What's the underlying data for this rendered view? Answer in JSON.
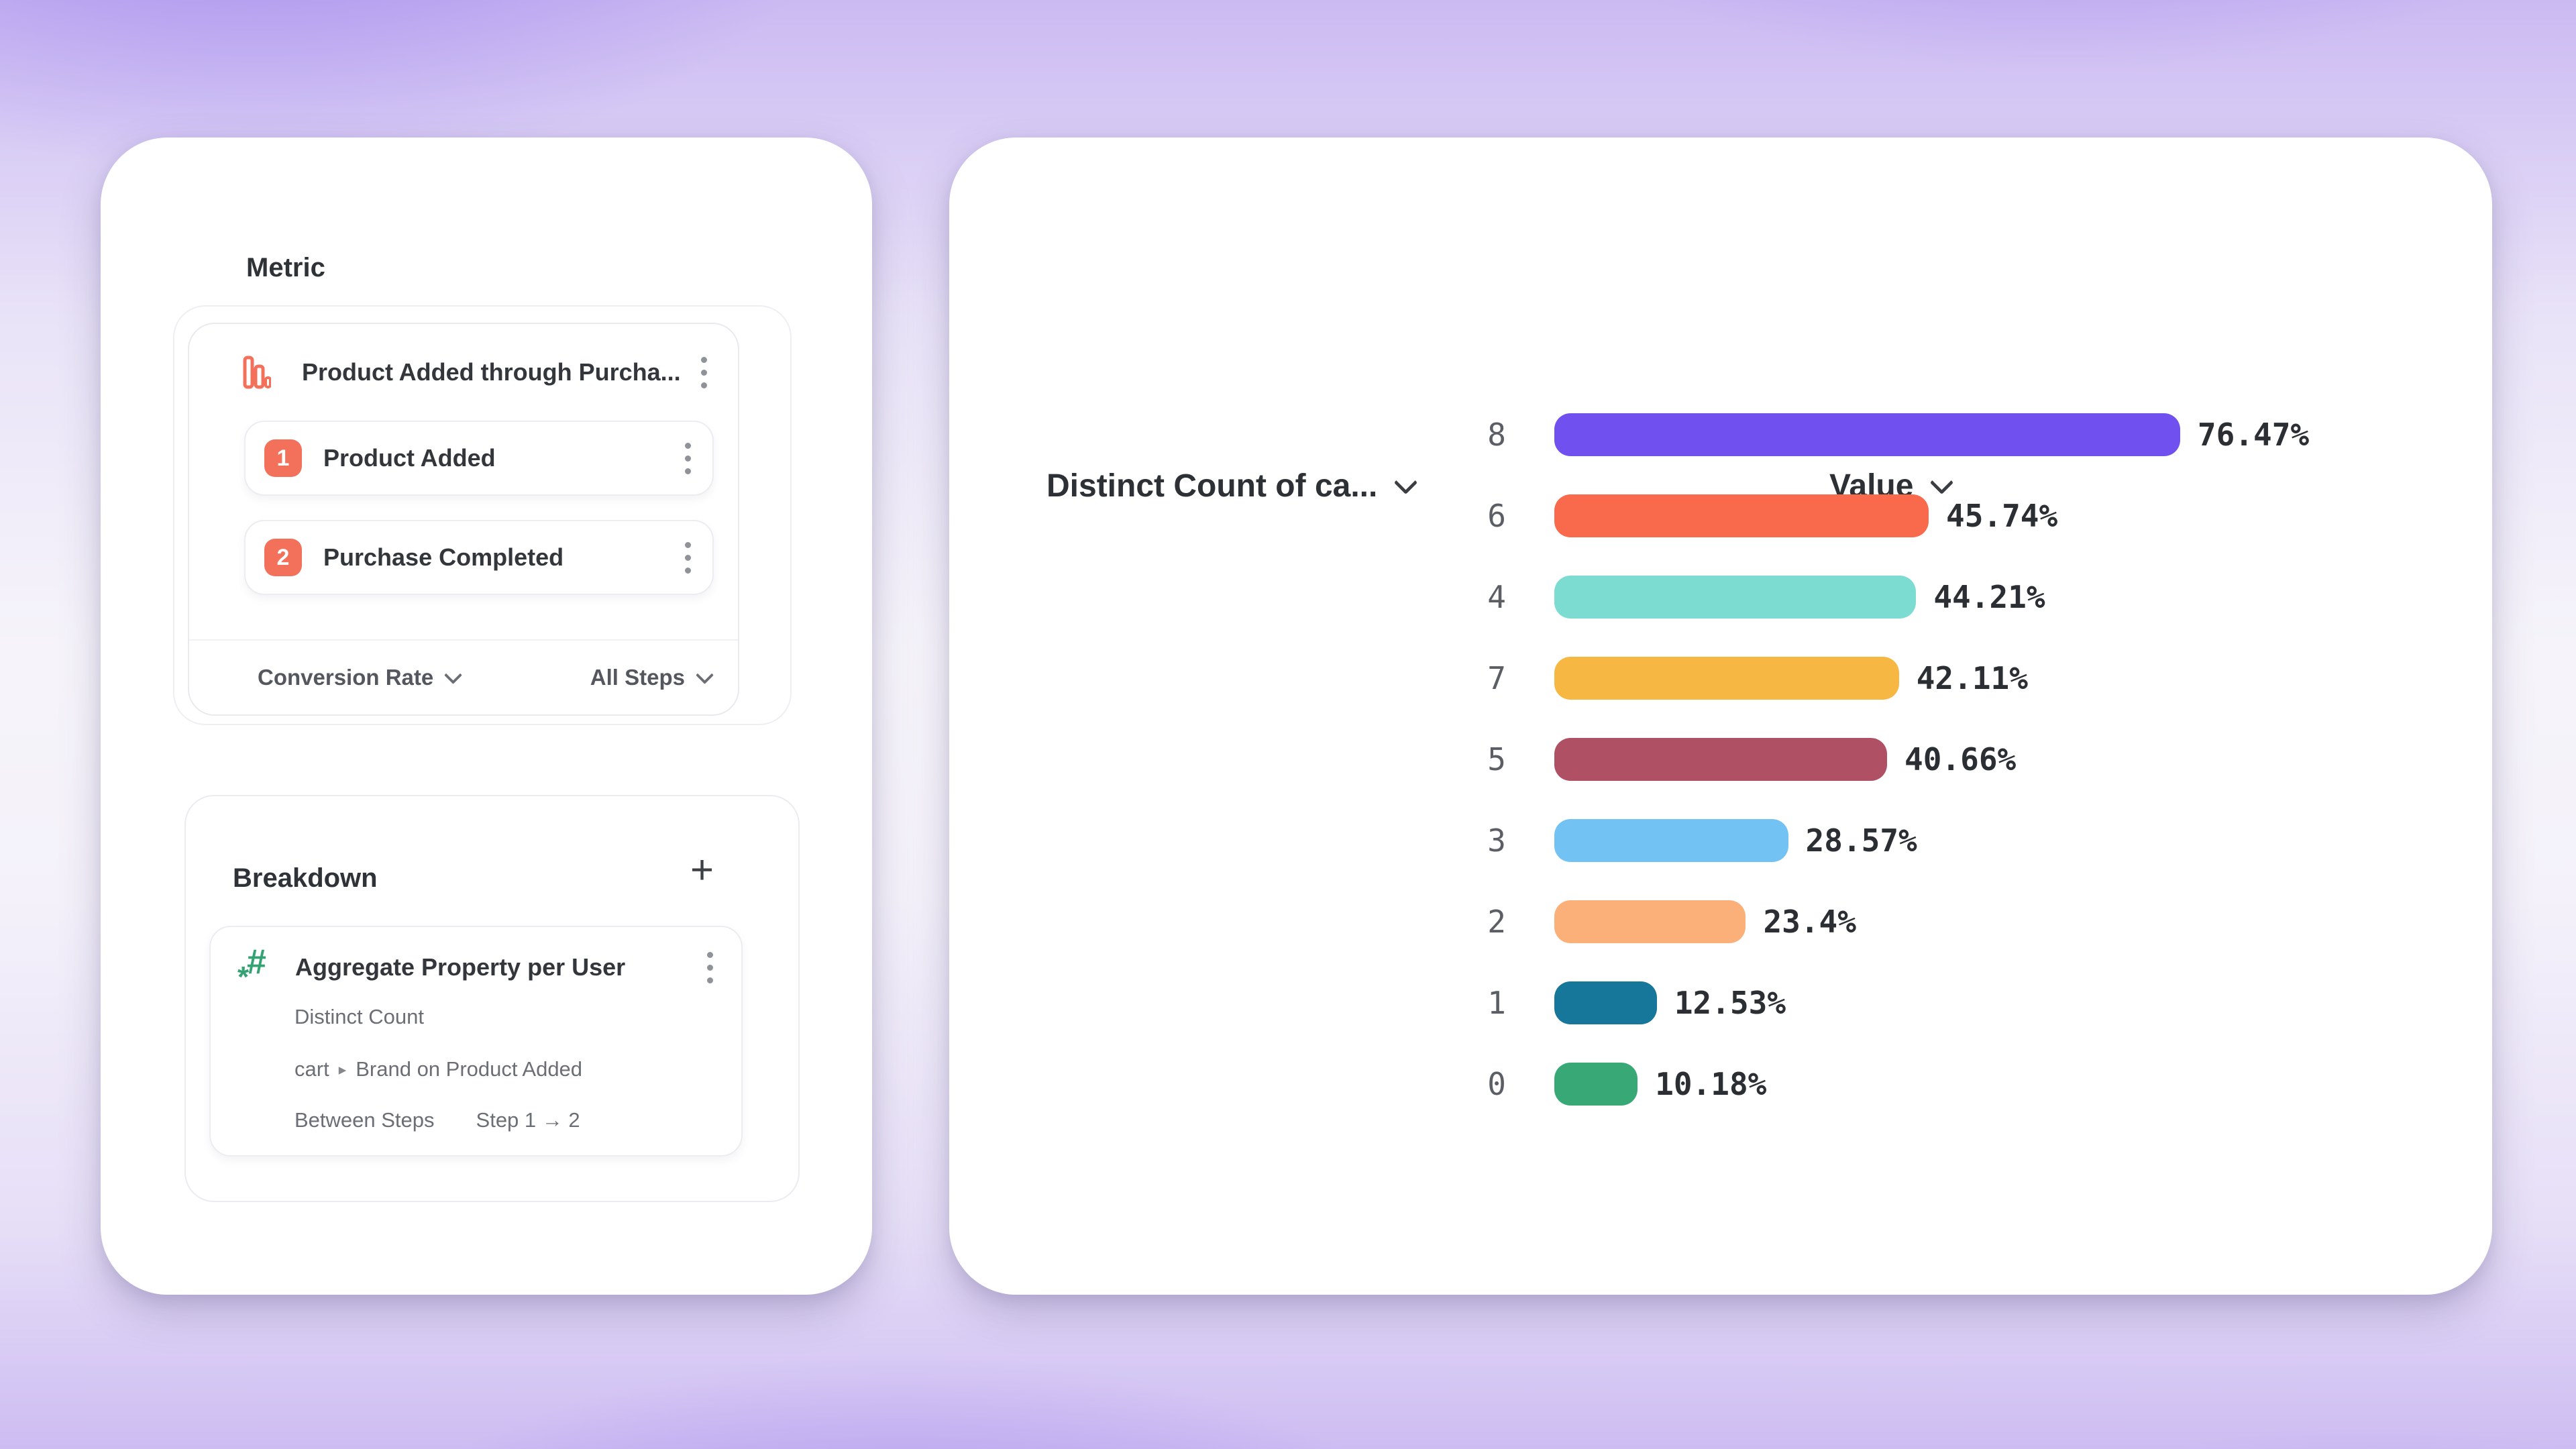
{
  "metric_panel": {
    "title": "Metric",
    "event": {
      "name": "Product Added through Purcha..."
    },
    "steps": [
      {
        "index": "1",
        "label": "Product Added"
      },
      {
        "index": "2",
        "label": "Purchase Completed"
      }
    ],
    "footer": {
      "measure": "Conversion Rate",
      "scope": "All Steps"
    },
    "accent_color": "#F3705A"
  },
  "breakdown_panel": {
    "title": "Breakdown",
    "add_button": "+",
    "item": {
      "name": "Aggregate Property per User",
      "aggregation": "Distinct Count",
      "property_event": "cart",
      "property_separator": "▸",
      "property_name": "Brand on Product Added",
      "timing_label": "Between Steps",
      "timing_value": "Step 1 → 2"
    },
    "accent_color": "#35A273"
  },
  "chart": {
    "column1_header": "Distinct Count of ca...",
    "column2_header": "Value"
  },
  "chart_data": {
    "type": "bar",
    "orientation": "horizontal",
    "categories": [
      "8",
      "6",
      "4",
      "7",
      "5",
      "3",
      "2",
      "1",
      "0"
    ],
    "values_percent": [
      76.47,
      45.74,
      44.21,
      42.11,
      40.66,
      28.57,
      23.4,
      12.53,
      10.18
    ],
    "value_labels": [
      "76.47%",
      "45.74%",
      "44.21%",
      "42.11%",
      "40.66%",
      "28.57%",
      "23.4%",
      "12.53%",
      "10.18%"
    ],
    "bar_colors": [
      "#7150F0",
      "#F9694C",
      "#7CDCD2",
      "#F7B843",
      "#B05065",
      "#72C2F3",
      "#FBB07A",
      "#17779B",
      "#38A877"
    ],
    "xlim": [
      0,
      100
    ],
    "grid": false,
    "legend": false
  }
}
